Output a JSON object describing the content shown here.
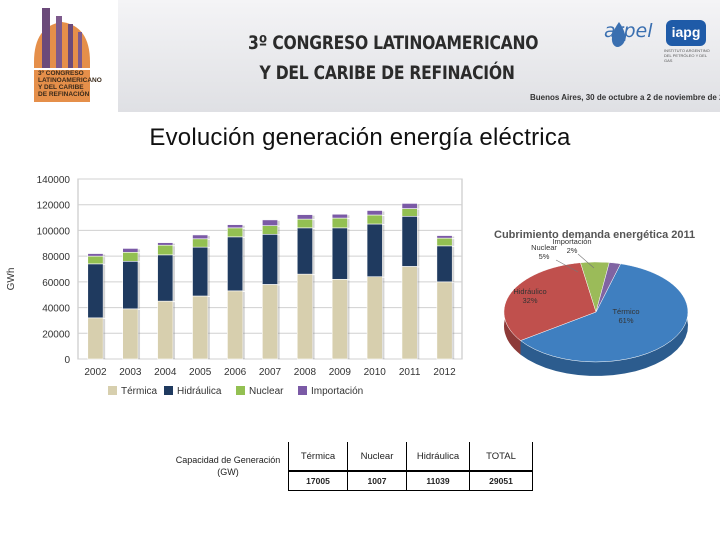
{
  "header": {
    "logo_lines": [
      "3º CONGRESO",
      "LATINOAMERICANO",
      "Y DEL CARIBE",
      "DE REFINACIÓN"
    ],
    "title_line1": "3º CONGRESO LATINOAMERICANO",
    "title_line2": "Y DEL CARIBE DE REFINACIÓN",
    "date": "Buenos Aires, 30 de octubre a 2 de noviembre de 2012",
    "arpel_logo": "arpel",
    "iapg_logo": "iapg",
    "iapg_sub": "INSTITUTO ARGENTINO DEL PETRÓLEO Y DEL GAS"
  },
  "slide_title": "Evolución generación energía eléctrica",
  "colors": {
    "termica": "#d7cfae",
    "hidraulica": "#1f3a5f",
    "nuclear": "#93c052",
    "importacion": "#7b5aa6",
    "pie_termica": "#3f7fc0",
    "pie_hidraulica": "#c0504d",
    "pie_nuclear": "#9bbb59",
    "pie_importacion": "#8064a2"
  },
  "chart_data": [
    {
      "type": "bar",
      "stacked": true,
      "categories": [
        "2002",
        "2003",
        "2004",
        "2005",
        "2006",
        "2007",
        "2008",
        "2009",
        "2010",
        "2011",
        "2012"
      ],
      "series": [
        {
          "name": "Térmica",
          "values": [
            32000,
            39000,
            45000,
            49000,
            53000,
            58000,
            66000,
            62000,
            64000,
            72000,
            60000
          ]
        },
        {
          "name": "Hidráulica",
          "values": [
            42000,
            37000,
            36000,
            38000,
            42000,
            39000,
            36000,
            40000,
            41000,
            39000,
            28000
          ]
        },
        {
          "name": "Nuclear",
          "values": [
            6000,
            7000,
            7500,
            6500,
            7000,
            6700,
            6800,
            7600,
            7000,
            6000,
            6000
          ]
        },
        {
          "name": "Importación",
          "values": [
            2000,
            3000,
            2000,
            3000,
            2500,
            4500,
            3500,
            3000,
            3500,
            4000,
            2000
          ]
        }
      ],
      "ylabel": "GWh",
      "ylim": [
        0,
        140000
      ],
      "yticks": [
        "0",
        "20000",
        "40000",
        "60000",
        "80000",
        "100000",
        "120000",
        "140000"
      ],
      "grid": true,
      "legend": "bottom"
    },
    {
      "type": "pie",
      "title": "Cubrimiento demanda energética 2011",
      "slices": [
        {
          "name": "Térmico",
          "value": 61,
          "label": "61%"
        },
        {
          "name": "Hidráulico",
          "value": 32,
          "label": "32%"
        },
        {
          "name": "Nuclear",
          "value": 5,
          "label": "5%"
        },
        {
          "name": "Importación",
          "value": 2,
          "label": "2%"
        }
      ]
    }
  ],
  "table": {
    "header_label": "Capacidad de Generación (GW)",
    "columns": [
      "Térmica",
      "Nuclear",
      "Hidráulica",
      "TOTAL"
    ],
    "values": [
      "17005",
      "1007",
      "11039",
      "29051"
    ]
  }
}
